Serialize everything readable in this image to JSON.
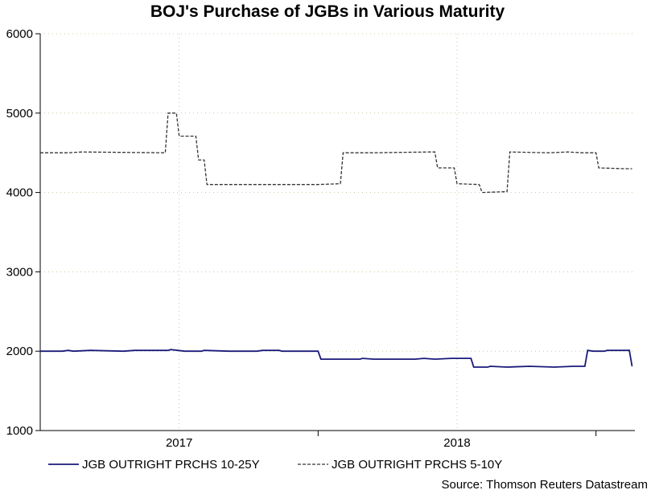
{
  "chart_data": {
    "type": "line",
    "title": "BOJ's Purchase of JGBs in Various Maturity",
    "source": "Source: Thomson Reuters Datastream",
    "ylim": [
      1000,
      6000
    ],
    "yticks": [
      1000,
      2000,
      3000,
      4000,
      5000,
      6000
    ],
    "xlim": [
      2016.5,
      2018.64
    ],
    "xtick_labels": [
      {
        "label": "2017",
        "at": 2017.0
      },
      {
        "label": "2018",
        "at": 2018.0
      }
    ],
    "year_boundaries": [
      2017.5,
      2018.5
    ],
    "grid": true,
    "legend_position": "bottom",
    "series": [
      {
        "name": "JGB OUTRIGHT PRCHS 10-25Y",
        "color": "#1a1a7a",
        "dash": "solid",
        "points": [
          [
            2016.5,
            2000
          ],
          [
            2016.58,
            2000
          ],
          [
            2016.6,
            2010
          ],
          [
            2016.62,
            2000
          ],
          [
            2016.68,
            2010
          ],
          [
            2016.8,
            2000
          ],
          [
            2016.84,
            2010
          ],
          [
            2016.96,
            2010
          ],
          [
            2016.97,
            2020
          ],
          [
            2017.02,
            2000
          ],
          [
            2017.08,
            2000
          ],
          [
            2017.09,
            2010
          ],
          [
            2017.18,
            2000
          ],
          [
            2017.28,
            2000
          ],
          [
            2017.3,
            2010
          ],
          [
            2017.36,
            2010
          ],
          [
            2017.37,
            2000
          ],
          [
            2017.5,
            2000
          ],
          [
            2017.51,
            1900
          ],
          [
            2017.65,
            1900
          ],
          [
            2017.66,
            1910
          ],
          [
            2017.7,
            1900
          ],
          [
            2017.85,
            1900
          ],
          [
            2017.88,
            1910
          ],
          [
            2017.92,
            1900
          ],
          [
            2017.98,
            1910
          ],
          [
            2018.05,
            1910
          ],
          [
            2018.06,
            1800
          ],
          [
            2018.11,
            1800
          ],
          [
            2018.12,
            1810
          ],
          [
            2018.18,
            1800
          ],
          [
            2018.26,
            1810
          ],
          [
            2018.35,
            1800
          ],
          [
            2018.42,
            1810
          ],
          [
            2018.46,
            1810
          ],
          [
            2018.47,
            2010
          ],
          [
            2018.49,
            2000
          ],
          [
            2018.53,
            2000
          ],
          [
            2018.54,
            2010
          ],
          [
            2018.62,
            2010
          ],
          [
            2018.63,
            1810
          ]
        ]
      },
      {
        "name": "JGB OUTRIGHT PRCHS 5-10Y",
        "color": "#333333",
        "dash": "dashed",
        "points": [
          [
            2016.5,
            4500
          ],
          [
            2016.6,
            4500
          ],
          [
            2016.65,
            4510
          ],
          [
            2016.95,
            4500
          ],
          [
            2016.96,
            5000
          ],
          [
            2016.99,
            5000
          ],
          [
            2017.0,
            4710
          ],
          [
            2017.06,
            4710
          ],
          [
            2017.07,
            4410
          ],
          [
            2017.09,
            4410
          ],
          [
            2017.1,
            4100
          ],
          [
            2017.2,
            4100
          ],
          [
            2017.4,
            4100
          ],
          [
            2017.5,
            4100
          ],
          [
            2017.58,
            4110
          ],
          [
            2017.59,
            4500
          ],
          [
            2017.7,
            4500
          ],
          [
            2017.9,
            4510
          ],
          [
            2017.92,
            4510
          ],
          [
            2017.93,
            4310
          ],
          [
            2017.99,
            4310
          ],
          [
            2018.0,
            4110
          ],
          [
            2018.08,
            4100
          ],
          [
            2018.09,
            4000
          ],
          [
            2018.18,
            4010
          ],
          [
            2018.19,
            4510
          ],
          [
            2018.33,
            4500
          ],
          [
            2018.4,
            4510
          ],
          [
            2018.45,
            4500
          ],
          [
            2018.5,
            4500
          ],
          [
            2018.51,
            4310
          ],
          [
            2018.6,
            4300
          ],
          [
            2018.63,
            4300
          ]
        ]
      }
    ]
  }
}
